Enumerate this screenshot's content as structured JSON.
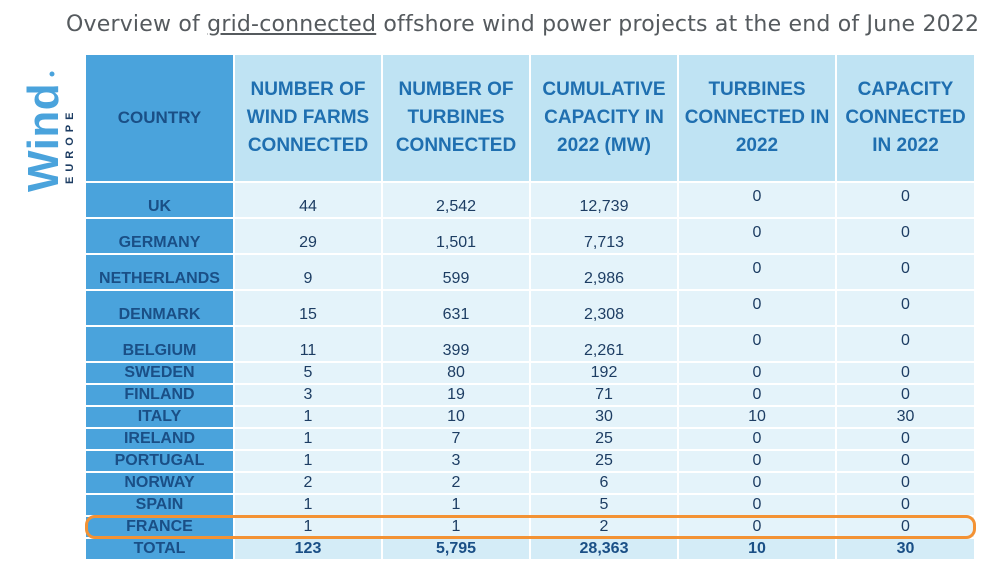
{
  "title": {
    "prefix": "Overview of ",
    "underlined": "grid-connected",
    "suffix": " offshore wind power projects at the end of June 2022"
  },
  "logo": {
    "wordmark": "Wind",
    "sub": "EUROPE",
    "color": "#4aa3dc"
  },
  "colors": {
    "header_bg": "#bfe3f3",
    "country_bg": "#4aa3dc",
    "cell_bg": "#e4f3fa",
    "highlight": "#f39234"
  },
  "table": {
    "headers": [
      "COUNTRY",
      "NUMBER OF WIND FARMS CONNECTED",
      "NUMBER OF TURBINES CONNECTED",
      "CUMULATIVE CAPACITY IN 2022 (MW)",
      "TURBINES CONNECTED IN 2022",
      "CAPACITY CONNECTED IN 2022"
    ],
    "rows": [
      [
        "UK",
        "44",
        "2,542",
        "12,739",
        "0",
        "0"
      ],
      [
        "GERMANY",
        "29",
        "1,501",
        "7,713",
        "0",
        "0"
      ],
      [
        "NETHERLANDS",
        "9",
        "599",
        "2,986",
        "0",
        "0"
      ],
      [
        "DENMARK",
        "15",
        "631",
        "2,308",
        "0",
        "0"
      ],
      [
        "BELGIUM",
        "11",
        "399",
        "2,261",
        "0",
        "0"
      ],
      [
        "SWEDEN",
        "5",
        "80",
        "192",
        "0",
        "0"
      ],
      [
        "FINLAND",
        "3",
        "19",
        "71",
        "0",
        "0"
      ],
      [
        "ITALY",
        "1",
        "10",
        "30",
        "10",
        "30"
      ],
      [
        "IRELAND",
        "1",
        "7",
        "25",
        "0",
        "0"
      ],
      [
        "PORTUGAL",
        "1",
        "3",
        "25",
        "0",
        "0"
      ],
      [
        "NORWAY",
        "2",
        "2",
        "6",
        "0",
        "0"
      ],
      [
        "SPAIN",
        "1",
        "1",
        "5",
        "0",
        "0"
      ],
      [
        "FRANCE",
        "1",
        "1",
        "2",
        "0",
        "0"
      ]
    ],
    "total": [
      "TOTAL",
      "123",
      "5,795",
      "28,363",
      "10",
      "30"
    ],
    "highlighted_row": "FRANCE"
  }
}
